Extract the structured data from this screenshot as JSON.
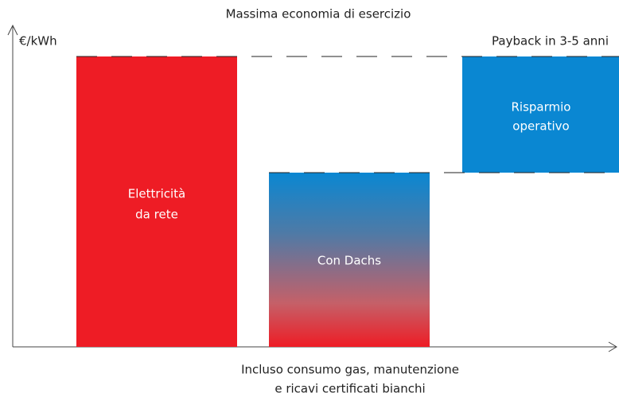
{
  "title": "Massima economia di esercizio",
  "y_axis_label": "€/kWh",
  "payback_label": "Payback in 3-5 anni",
  "bars": [
    {
      "label": [
        "Elettricità",
        "da rete"
      ]
    },
    {
      "label": [
        "Con Dachs"
      ]
    },
    {
      "label": [
        "Risparmio",
        "operativo"
      ]
    }
  ],
  "x_note": [
    "Incluso consumo gas, manutenzione",
    "e ricavi certificati bianchi"
  ]
}
